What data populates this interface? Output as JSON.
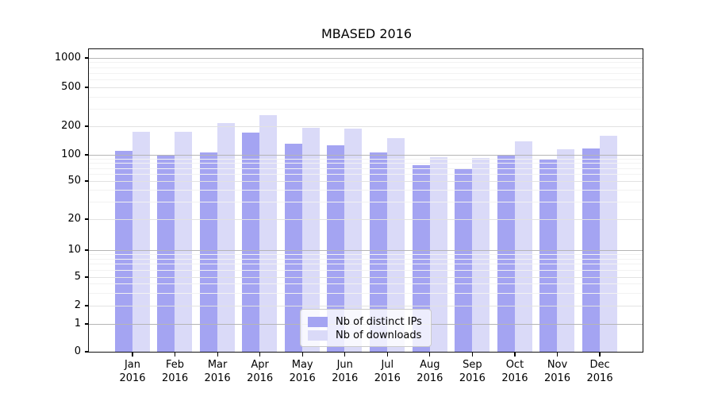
{
  "title": "MBASED 2016",
  "chart_data": {
    "type": "bar",
    "title": "MBASED 2016",
    "categories": [
      "Jan 2016",
      "Feb 2016",
      "Mar 2016",
      "Apr 2016",
      "May 2016",
      "Jun 2016",
      "Jul 2016",
      "Aug 2016",
      "Sep 2016",
      "Oct 2016",
      "Nov 2016",
      "Dec 2016"
    ],
    "series": [
      {
        "name": "Nb of distinct IPs",
        "color": "#a4a4f2",
        "values": [
          110,
          98,
          105,
          170,
          130,
          125,
          105,
          75,
          68,
          100,
          87,
          115
        ]
      },
      {
        "name": "Nb of downloads",
        "color": "#dadaf8",
        "values": [
          175,
          175,
          215,
          258,
          190,
          186,
          148,
          94,
          92,
          138,
          114,
          158
        ]
      }
    ],
    "xlabel": "",
    "ylabel": "",
    "yscale": "symlog",
    "yticks": [
      0,
      1,
      2,
      5,
      10,
      20,
      50,
      100,
      200,
      500,
      1000
    ],
    "ylim": [
      0,
      1250
    ],
    "grid": "both",
    "legend_position": "lower center"
  },
  "legend": {
    "items": [
      {
        "label": "Nb of distinct IPs",
        "color": "#a4a4f2"
      },
      {
        "label": "Nb of downloads",
        "color": "#dadaf8"
      }
    ]
  }
}
